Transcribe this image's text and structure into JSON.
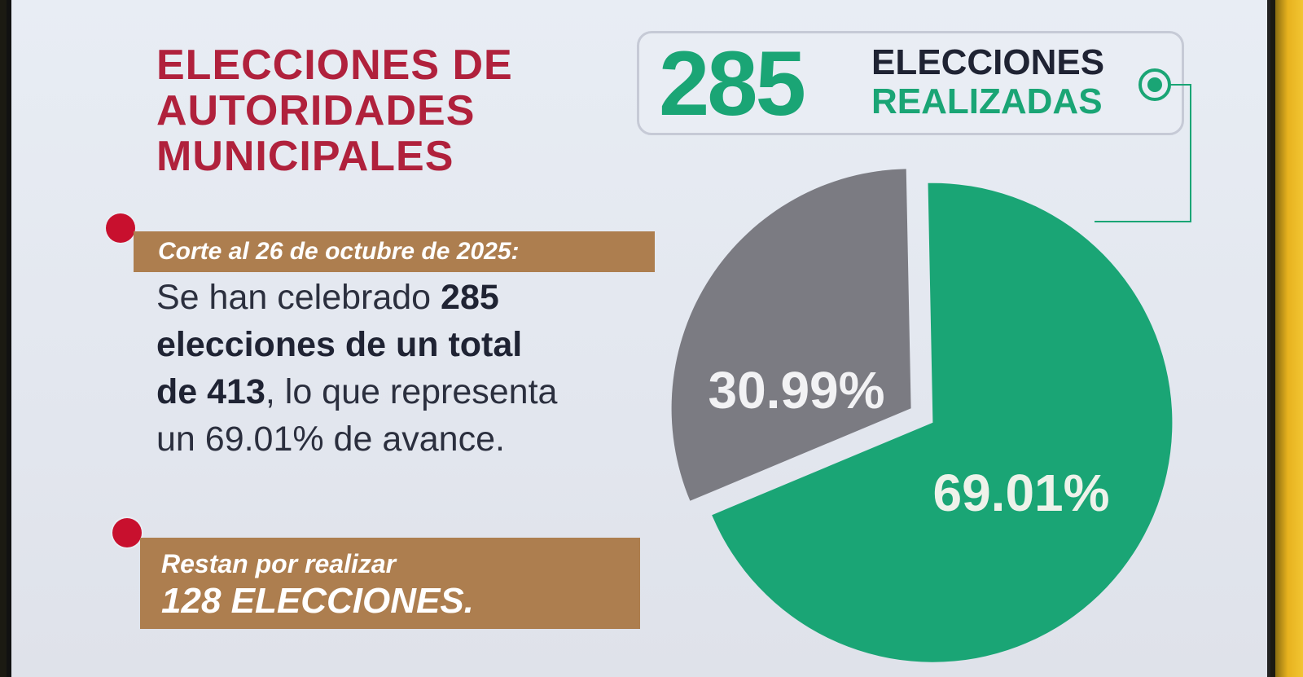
{
  "title": {
    "line1": "ELECCIONES DE",
    "line2": "AUTORIDADES",
    "line3": "MUNICIPALES"
  },
  "counter": {
    "number": "285",
    "line1": "ELECCIONES",
    "line2": "REALIZADAS"
  },
  "date_band": "Corte al 26 de octubre de 2025:",
  "body": {
    "p1": "Se han celebrado ",
    "b1": "285",
    "b2": "elecciones de un total",
    "b3": "de 413",
    "p2": ", lo que representa",
    "p3": "un 69.01% de avance."
  },
  "rest_band": {
    "line1": "Restan por realizar",
    "line2": "128 ELECCIONES."
  },
  "colors": {
    "title": "#b0213c",
    "accent_green": "#1aa575",
    "band_brown": "#ad7e4f",
    "bullet_red": "#c8102e",
    "slice_gray": "#7b7b82"
  },
  "chart_data": {
    "type": "pie",
    "title": "",
    "slices": [
      {
        "label": "69.01%",
        "value": 69.01,
        "color": "#1aa575"
      },
      {
        "label": "30.99%",
        "value": 30.99,
        "color": "#7b7b82"
      }
    ]
  }
}
